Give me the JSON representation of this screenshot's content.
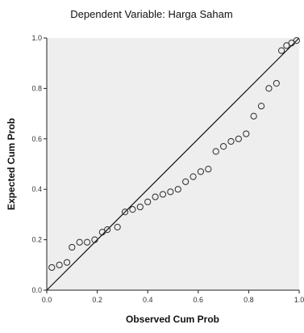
{
  "chart_data": {
    "type": "scatter",
    "title": "Dependent Variable: Harga Saham",
    "xlabel": "Observed Cum Prob",
    "ylabel": "Expected Cum Prob",
    "xlim": [
      0,
      1
    ],
    "ylim": [
      0,
      1
    ],
    "x_ticks": [
      "0.0",
      "0.2",
      "0.4",
      "0.6",
      "0.8",
      "1.0"
    ],
    "y_ticks": [
      "0.0",
      "0.2",
      "0.4",
      "0.6",
      "0.8",
      "1.0"
    ],
    "reference_line": {
      "from": [
        0,
        0
      ],
      "to": [
        1,
        1
      ]
    },
    "points": [
      {
        "x": 0.02,
        "y": 0.09
      },
      {
        "x": 0.05,
        "y": 0.1
      },
      {
        "x": 0.08,
        "y": 0.11
      },
      {
        "x": 0.1,
        "y": 0.17
      },
      {
        "x": 0.13,
        "y": 0.19
      },
      {
        "x": 0.16,
        "y": 0.19
      },
      {
        "x": 0.19,
        "y": 0.2
      },
      {
        "x": 0.22,
        "y": 0.23
      },
      {
        "x": 0.24,
        "y": 0.24
      },
      {
        "x": 0.28,
        "y": 0.25
      },
      {
        "x": 0.31,
        "y": 0.31
      },
      {
        "x": 0.34,
        "y": 0.32
      },
      {
        "x": 0.37,
        "y": 0.33
      },
      {
        "x": 0.4,
        "y": 0.35
      },
      {
        "x": 0.43,
        "y": 0.37
      },
      {
        "x": 0.46,
        "y": 0.38
      },
      {
        "x": 0.49,
        "y": 0.39
      },
      {
        "x": 0.52,
        "y": 0.4
      },
      {
        "x": 0.55,
        "y": 0.43
      },
      {
        "x": 0.58,
        "y": 0.45
      },
      {
        "x": 0.61,
        "y": 0.47
      },
      {
        "x": 0.64,
        "y": 0.48
      },
      {
        "x": 0.67,
        "y": 0.55
      },
      {
        "x": 0.7,
        "y": 0.57
      },
      {
        "x": 0.73,
        "y": 0.59
      },
      {
        "x": 0.76,
        "y": 0.6
      },
      {
        "x": 0.79,
        "y": 0.62
      },
      {
        "x": 0.82,
        "y": 0.69
      },
      {
        "x": 0.85,
        "y": 0.73
      },
      {
        "x": 0.88,
        "y": 0.8
      },
      {
        "x": 0.91,
        "y": 0.82
      },
      {
        "x": 0.93,
        "y": 0.95
      },
      {
        "x": 0.95,
        "y": 0.97
      },
      {
        "x": 0.97,
        "y": 0.98
      },
      {
        "x": 0.99,
        "y": 0.99
      }
    ],
    "grid": false,
    "colors": {
      "plot_background": "#eeeeee",
      "marker": "#2b2b2b",
      "line": "#111111",
      "axis": "#222222"
    }
  }
}
